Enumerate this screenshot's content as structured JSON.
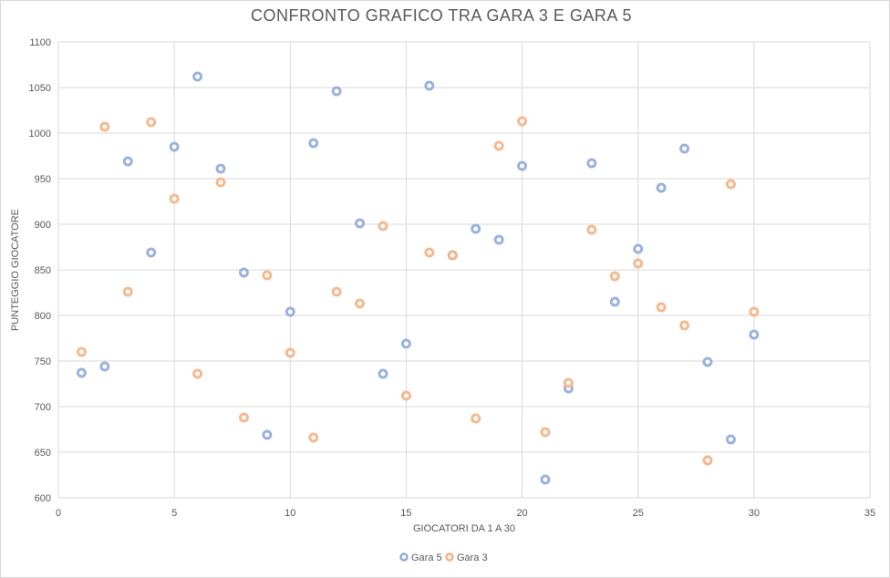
{
  "chart_data": {
    "type": "scatter",
    "title": "CONFRONTO GRAFICO TRA GARA 3 E GARA 5",
    "xlabel": "GIOCATORI DA 1 A 30",
    "ylabel": "PUNTEGGIO GIOCATORE",
    "xlim": [
      0,
      35
    ],
    "ylim": [
      600,
      1100
    ],
    "x_ticks": [
      "0",
      "5",
      "10",
      "15",
      "20",
      "25",
      "30",
      "35"
    ],
    "y_ticks": [
      "600",
      "650",
      "700",
      "750",
      "800",
      "850",
      "900",
      "950",
      "1000",
      "1050",
      "1100"
    ],
    "grid": true,
    "legend_position": "bottom",
    "series": [
      {
        "name": "Gara 5",
        "color": "#8faadc",
        "x": [
          1,
          2,
          3,
          4,
          5,
          6,
          7,
          8,
          9,
          10,
          11,
          12,
          13,
          14,
          15,
          16,
          17,
          18,
          19,
          20,
          21,
          22,
          23,
          24,
          25,
          26,
          27,
          28,
          29,
          30
        ],
        "y": [
          737,
          744,
          969,
          869,
          985,
          1062,
          961,
          847,
          669,
          804,
          989,
          1046,
          901,
          736,
          769,
          1052,
          866,
          895,
          883,
          964,
          620,
          720,
          967,
          815,
          873,
          940,
          983,
          749,
          664,
          779
        ]
      },
      {
        "name": "Gara 3",
        "color": "#f4b183",
        "x": [
          1,
          2,
          3,
          4,
          5,
          6,
          7,
          8,
          9,
          10,
          11,
          12,
          13,
          14,
          15,
          16,
          17,
          18,
          19,
          20,
          21,
          22,
          23,
          24,
          25,
          26,
          27,
          28,
          29,
          30
        ],
        "y": [
          760,
          1007,
          826,
          1012,
          928,
          736,
          946,
          688,
          844,
          759,
          666,
          826,
          813,
          898,
          712,
          869,
          866,
          687,
          986,
          1013,
          672,
          726,
          894,
          843,
          857,
          809,
          789,
          641,
          944,
          804
        ]
      }
    ]
  }
}
